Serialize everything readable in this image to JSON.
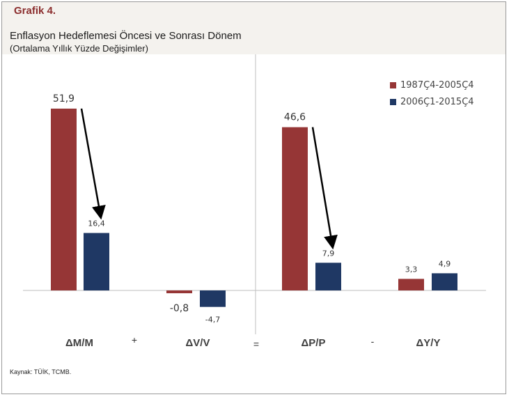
{
  "header": {
    "label": "Grafik 4.",
    "title": "Enflasyon Hedeflemesi Öncesi ve Sonrası Dönem",
    "subtitle": "(Ortalama Yıllık  Yüzde Değişimler)"
  },
  "source_note": "Kaynak: TÜİK, TCMB.",
  "colors": {
    "series1": "#963636",
    "series2": "#1f3864",
    "arrow": "#000000",
    "axis": "#bfbfbf",
    "header_bg": "#f4f2ee",
    "label_red": "#8b2d2d"
  },
  "chart_data": {
    "type": "bar",
    "categories": [
      "ΔM/M",
      "ΔV/V",
      "ΔP/P",
      "ΔY/Y"
    ],
    "series": [
      {
        "name": "1987Ç4-2005Ç4",
        "values": [
          51.9,
          -0.8,
          46.6,
          3.3
        ],
        "labels": [
          "51,9",
          "-0,8",
          "46,6",
          "3,3"
        ]
      },
      {
        "name": "2006Ç1-2015Ç4",
        "values": [
          16.4,
          -4.7,
          7.9,
          4.9
        ],
        "labels": [
          "16,4",
          "-4,7",
          "7,9",
          "4,9"
        ]
      }
    ],
    "operators": [
      "+",
      "=",
      "-"
    ],
    "arrows": [
      {
        "from_category": 0
      },
      {
        "from_category": 2
      }
    ],
    "ylim": [
      -5,
      55
    ],
    "grid": false,
    "legend_position": "top-right"
  }
}
